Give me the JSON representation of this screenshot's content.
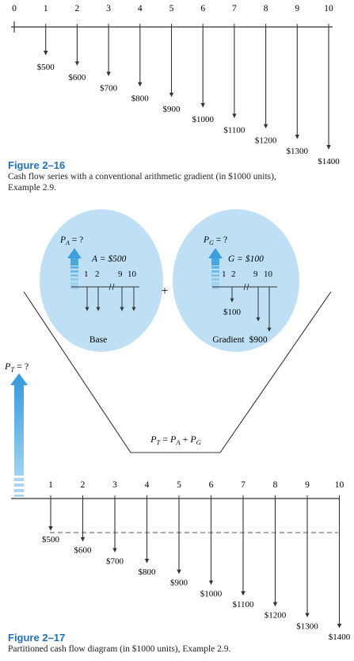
{
  "figure_16": {
    "period_labels": [
      "0",
      "1",
      "2",
      "3",
      "4",
      "5",
      "6",
      "7",
      "8",
      "9",
      "10"
    ],
    "amount_labels": [
      "$500",
      "$600",
      "$700",
      "$800",
      "$900",
      "$1000",
      "$1100",
      "$1200",
      "$1300",
      "$1400"
    ],
    "amounts_thousands": [
      500,
      600,
      700,
      800,
      900,
      1000,
      1100,
      1200,
      1300,
      1400
    ],
    "title": "Figure 2–16",
    "caption_line1": "Cash flow series with a conventional arithmetic gradient (in $1000 units),",
    "caption_line2": "Example 2.9."
  },
  "base_circle": {
    "pa_label": "P",
    "pa_sub": "A",
    "pa_suffix": " = ?",
    "amount_label": "A = $500",
    "period_labels": [
      "1",
      "2",
      "9",
      "10"
    ],
    "name": "Base"
  },
  "plus_sign": "+",
  "gradient_circle": {
    "pg_label": "P",
    "pg_sub": "G",
    "pg_suffix": " = ?",
    "amount_label": "G = $100",
    "period_labels": [
      "1",
      "2",
      "9",
      "10"
    ],
    "first_amount": "$100",
    "name_prefix": "Gradient",
    "last_amount": "$900"
  },
  "funnel_equation": {
    "lhs": "P",
    "lhs_sub": "T",
    "eq": " = ",
    "t1": "P",
    "t1_sub": "A",
    "plus": " + ",
    "t2": "P",
    "t2_sub": "G"
  },
  "figure_17": {
    "pt_label": "P",
    "pt_sub": "T",
    "pt_suffix": " = ?",
    "period_labels": [
      "1",
      "2",
      "3",
      "4",
      "5",
      "6",
      "7",
      "8",
      "9",
      "10"
    ],
    "amount_labels": [
      "$500",
      "$600",
      "$700",
      "$800",
      "$900",
      "$1000",
      "$1100",
      "$1200",
      "$1300",
      "$1400"
    ],
    "title": "Figure 2–17",
    "caption": "Partitioned cash flow diagram (in $1000 units), Example 2.9."
  },
  "colors": {
    "line": "#333333",
    "circle_fill": "#bfe0f4",
    "arrow_up": "#4aa8e0",
    "caption_title": "#1f72b8"
  }
}
